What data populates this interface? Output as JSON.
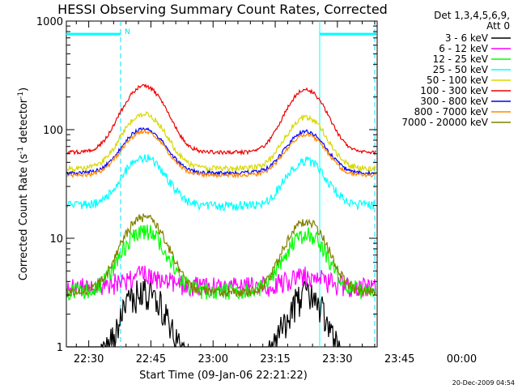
{
  "chart_data": {
    "type": "line",
    "title": "HESSI Observing Summary Count Rates, Corrected",
    "xlabel": "Start Time (09-Jan-06 22:21:22)",
    "ylabel": "Corrected Count Rate (s⁻¹ detector⁻¹)",
    "ylabel_main": "Corrected Count Rate (s",
    "ylabel_sup1": "-1",
    "ylabel_mid": " detector",
    "ylabel_sup2": "-1",
    "ylabel_end": ")",
    "y_scale": "log",
    "ylim": [
      1,
      1000
    ],
    "y_ticks": [
      {
        "value": 1,
        "label": "1"
      },
      {
        "value": 10,
        "label": "10"
      },
      {
        "value": 100,
        "label": "100"
      },
      {
        "value": 1000,
        "label": "1000"
      }
    ],
    "x_range_minutes": [
      -5.4,
      69.6
    ],
    "x_ticks": [
      {
        "minute": 0,
        "label": "22:30"
      },
      {
        "minute": 15,
        "label": "22:45"
      },
      {
        "minute": 30,
        "label": "23:00"
      },
      {
        "minute": 45,
        "label": "23:15"
      },
      {
        "minute": 60,
        "label": "23:30"
      },
      {
        "minute": 75,
        "label": "23:45"
      },
      {
        "minute": 90,
        "label": "00:00"
      }
    ],
    "legend_header": [
      "Det 1,3,4,5,6,9,",
      "Att 0"
    ],
    "legend_position": "right",
    "series": [
      {
        "name": "3 - 6 keV",
        "color": "#000000"
      },
      {
        "name": "6 - 12 keV",
        "color": "#ff00ff"
      },
      {
        "name": "12 - 25 keV",
        "color": "#00ff00"
      },
      {
        "name": "25 - 50 keV",
        "color": "#00ffff"
      },
      {
        "name": "50 - 100 keV",
        "color": "#d8d800"
      },
      {
        "name": "100 - 300 keV",
        "color": "#ee0000"
      },
      {
        "name": "300 - 800 keV",
        "color": "#0000ff"
      },
      {
        "name": "800 - 7000 keV",
        "color": "#ff8800"
      },
      {
        "name": "7000 - 20000 keV",
        "color": "#808000"
      }
    ],
    "annotation_N": "N",
    "timestamp": "20-Dec-2009 04:54"
  }
}
